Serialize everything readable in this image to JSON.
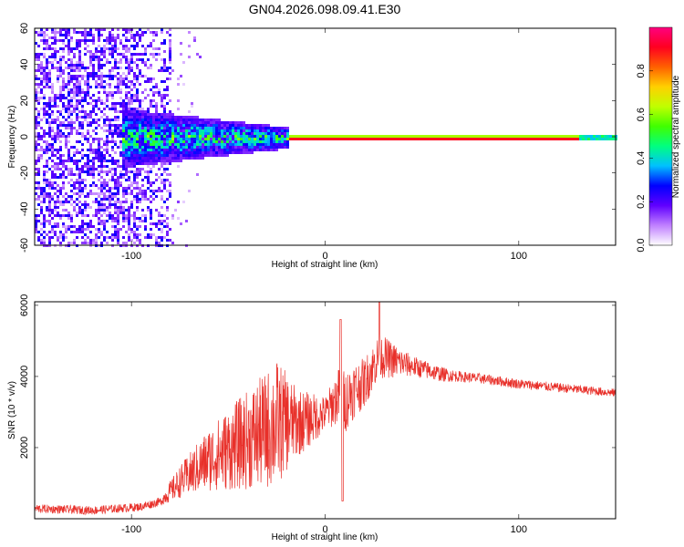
{
  "figure": {
    "title": "GN04.2026.098.09.41.E30"
  },
  "chart_data": [
    {
      "type": "heatmap",
      "xlabel": "Height of straight line (km)",
      "ylabel": "Frequency (Hz)",
      "xlim": [
        -150,
        150
      ],
      "ylim": [
        -60,
        60
      ],
      "x_ticks": [
        "-100",
        "0",
        "100"
      ],
      "y_ticks": [
        "60",
        "40",
        "20",
        "0",
        "-20",
        "-40",
        "-60"
      ],
      "colorbar": {
        "label": "Normalized spectral amplitude",
        "range": [
          0,
          1
        ],
        "ticks": [
          "0.0",
          "0.2",
          "0.4",
          "0.6",
          "0.8"
        ],
        "colormap": [
          "#ffffff",
          "#c080ff",
          "#6000ff",
          "#0000ff",
          "#00c0ff",
          "#00ff80",
          "#40ff00",
          "#c0ff00",
          "#ffd000",
          "#ff6000",
          "#ff0020",
          "#ff0080"
        ]
      },
      "description_values": {
        "carrier_frequency_hz": 0,
        "noise_region_km": [
          -150,
          -80
        ],
        "strong_signal_km": [
          -20,
          130
        ]
      }
    },
    {
      "type": "line",
      "xlabel": "Height of straight line (km)",
      "ylabel": "SNR (10 * v/v)",
      "xlim": [
        -150,
        150
      ],
      "ylim": [
        0,
        6100
      ],
      "x_ticks": [
        "-100",
        "0",
        "100"
      ],
      "y_ticks": [
        "6000",
        "4000",
        "2000"
      ],
      "color": "#e8302a",
      "envelope": {
        "x": [
          -150,
          -120,
          -95,
          -85,
          -75,
          -60,
          -45,
          -30,
          -20,
          -10,
          0,
          5,
          8,
          10,
          15,
          20,
          28,
          35,
          45,
          60,
          80,
          100,
          120,
          150
        ],
        "y": [
          250,
          200,
          300,
          450,
          900,
          1400,
          1700,
          2000,
          2300,
          2500,
          2800,
          3100,
          3300,
          3000,
          3400,
          3600,
          4400,
          4300,
          4200,
          4000,
          3900,
          3750,
          3650,
          3500
        ]
      },
      "noise_amplitude": {
        "x": [
          -150,
          -85,
          -80,
          -60,
          -40,
          -25,
          -15,
          0,
          10,
          20,
          30,
          45,
          70,
          150
        ],
        "y": [
          120,
          120,
          300,
          900,
          1400,
          1800,
          1000,
          500,
          900,
          700,
          600,
          300,
          150,
          120
        ]
      }
    }
  ]
}
